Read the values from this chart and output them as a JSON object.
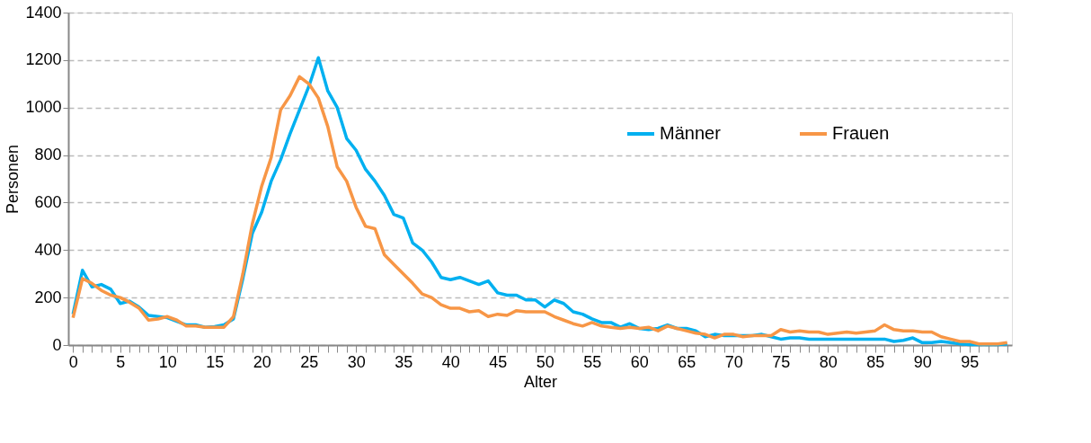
{
  "chart_data": {
    "type": "line",
    "xlabel": "Alter",
    "ylabel": "Personen",
    "x": [
      0,
      1,
      2,
      3,
      4,
      5,
      6,
      7,
      8,
      9,
      10,
      11,
      12,
      13,
      14,
      15,
      16,
      17,
      18,
      19,
      20,
      21,
      22,
      23,
      24,
      25,
      26,
      27,
      28,
      29,
      30,
      31,
      32,
      33,
      34,
      35,
      36,
      37,
      38,
      39,
      40,
      41,
      42,
      43,
      44,
      45,
      46,
      47,
      48,
      49,
      50,
      51,
      52,
      53,
      54,
      55,
      56,
      57,
      58,
      59,
      60,
      61,
      62,
      63,
      64,
      65,
      66,
      67,
      68,
      69,
      70,
      71,
      72,
      73,
      74,
      75,
      76,
      77,
      78,
      79,
      80,
      81,
      82,
      83,
      84,
      85,
      86,
      87,
      88,
      89,
      90,
      91,
      92,
      93,
      94,
      95,
      96,
      97,
      98,
      99
    ],
    "series": [
      {
        "name": "Männer",
        "color": "#00b0f0",
        "values": [
          130,
          315,
          245,
          255,
          235,
          175,
          185,
          160,
          125,
          120,
          115,
          100,
          85,
          85,
          75,
          78,
          85,
          110,
          280,
          470,
          560,
          690,
          780,
          890,
          990,
          1090,
          1210,
          1070,
          1000,
          870,
          820,
          740,
          690,
          630,
          550,
          535,
          430,
          400,
          350,
          285,
          275,
          285,
          270,
          255,
          270,
          220,
          210,
          210,
          190,
          190,
          160,
          190,
          175,
          140,
          130,
          110,
          95,
          95,
          75,
          90,
          70,
          65,
          70,
          85,
          70,
          70,
          60,
          35,
          45,
          40,
          40,
          40,
          40,
          45,
          35,
          25,
          30,
          30,
          25,
          25,
          25,
          25,
          25,
          25,
          25,
          25,
          25,
          15,
          20,
          30,
          10,
          10,
          15,
          10,
          5,
          2,
          2,
          2,
          2,
          5
        ]
      },
      {
        "name": "Frauen",
        "color": "#f79646",
        "values": [
          115,
          280,
          260,
          230,
          210,
          200,
          180,
          155,
          105,
          110,
          120,
          105,
          80,
          80,
          75,
          75,
          75,
          120,
          300,
          510,
          670,
          790,
          990,
          1050,
          1130,
          1100,
          1040,
          920,
          750,
          690,
          580,
          500,
          490,
          380,
          340,
          300,
          260,
          215,
          200,
          170,
          155,
          155,
          140,
          145,
          120,
          130,
          125,
          145,
          140,
          140,
          140,
          120,
          105,
          90,
          80,
          95,
          80,
          75,
          70,
          75,
          70,
          75,
          60,
          80,
          70,
          60,
          50,
          45,
          30,
          45,
          45,
          35,
          40,
          40,
          40,
          65,
          55,
          60,
          55,
          55,
          45,
          50,
          55,
          50,
          55,
          60,
          85,
          65,
          60,
          60,
          55,
          55,
          35,
          25,
          15,
          15,
          5,
          5,
          5,
          10
        ]
      }
    ],
    "xlim": [
      -0.5,
      99.5
    ],
    "xticks": [
      0,
      {
        "value": 1,
        "label": null
      },
      {
        "value": 2,
        "label": null
      },
      {
        "value": 3,
        "label": null
      },
      {
        "value": 4,
        "label": null
      },
      5,
      {
        "value": 6,
        "label": null
      },
      {
        "value": 7,
        "label": null
      },
      {
        "value": 8,
        "label": null
      },
      {
        "value": 9,
        "label": null
      },
      10,
      {
        "value": 11,
        "label": null
      },
      {
        "value": 12,
        "label": null
      },
      {
        "value": 13,
        "label": null
      },
      {
        "value": 14,
        "label": null
      },
      15,
      {
        "value": 16,
        "label": null
      },
      {
        "value": 17,
        "label": null
      },
      {
        "value": 18,
        "label": null
      },
      {
        "value": 19,
        "label": null
      },
      20,
      {
        "value": 21,
        "label": null
      },
      {
        "value": 22,
        "label": null
      },
      {
        "value": 23,
        "label": null
      },
      {
        "value": 24,
        "label": null
      },
      25,
      {
        "value": 26,
        "label": null
      },
      {
        "value": 27,
        "label": null
      },
      {
        "value": 28,
        "label": null
      },
      {
        "value": 29,
        "label": null
      },
      30,
      {
        "value": 31,
        "label": null
      },
      {
        "value": 32,
        "label": null
      },
      {
        "value": 33,
        "label": null
      },
      {
        "value": 34,
        "label": null
      },
      35,
      {
        "value": 36,
        "label": null
      },
      {
        "value": 37,
        "label": null
      },
      {
        "value": 38,
        "label": null
      },
      {
        "value": 39,
        "label": null
      },
      40,
      {
        "value": 41,
        "label": null
      },
      {
        "value": 42,
        "label": null
      },
      {
        "value": 43,
        "label": null
      },
      {
        "value": 44,
        "label": null
      },
      45,
      {
        "value": 46,
        "label": null
      },
      {
        "value": 47,
        "label": null
      },
      {
        "value": 48,
        "label": null
      },
      {
        "value": 49,
        "label": null
      },
      50,
      {
        "value": 51,
        "label": null
      },
      {
        "value": 52,
        "label": null
      },
      {
        "value": 53,
        "label": null
      },
      {
        "value": 54,
        "label": null
      },
      55,
      {
        "value": 56,
        "label": null
      },
      {
        "value": 57,
        "label": null
      },
      {
        "value": 58,
        "label": null
      },
      {
        "value": 59,
        "label": null
      },
      60,
      {
        "value": 61,
        "label": null
      },
      {
        "value": 62,
        "label": null
      },
      {
        "value": 63,
        "label": null
      },
      {
        "value": 64,
        "label": null
      },
      65,
      {
        "value": 66,
        "label": null
      },
      {
        "value": 67,
        "label": null
      },
      {
        "value": 68,
        "label": null
      },
      {
        "value": 69,
        "label": null
      },
      70,
      {
        "value": 71,
        "label": null
      },
      {
        "value": 72,
        "label": null
      },
      {
        "value": 73,
        "label": null
      },
      {
        "value": 74,
        "label": null
      },
      75,
      {
        "value": 76,
        "label": null
      },
      {
        "value": 77,
        "label": null
      },
      {
        "value": 78,
        "label": null
      },
      {
        "value": 79,
        "label": null
      },
      80,
      {
        "value": 81,
        "label": null
      },
      {
        "value": 82,
        "label": null
      },
      {
        "value": 83,
        "label": null
      },
      {
        "value": 84,
        "label": null
      },
      85,
      {
        "value": 86,
        "label": null
      },
      {
        "value": 87,
        "label": null
      },
      {
        "value": 88,
        "label": null
      },
      {
        "value": 89,
        "label": null
      },
      90,
      {
        "value": 91,
        "label": null
      },
      {
        "value": 92,
        "label": null
      },
      {
        "value": 93,
        "label": null
      },
      {
        "value": 94,
        "label": null
      },
      95,
      {
        "value": 96,
        "label": null
      },
      {
        "value": 97,
        "label": null
      },
      {
        "value": 98,
        "label": null
      },
      {
        "value": 99,
        "label": null
      }
    ],
    "ylim": [
      0,
      1400
    ],
    "yticks": [
      0,
      200,
      400,
      600,
      800,
      1000,
      1200,
      1400
    ],
    "grid": "y",
    "legend": "right",
    "marker": "none",
    "line_style": "solid"
  }
}
